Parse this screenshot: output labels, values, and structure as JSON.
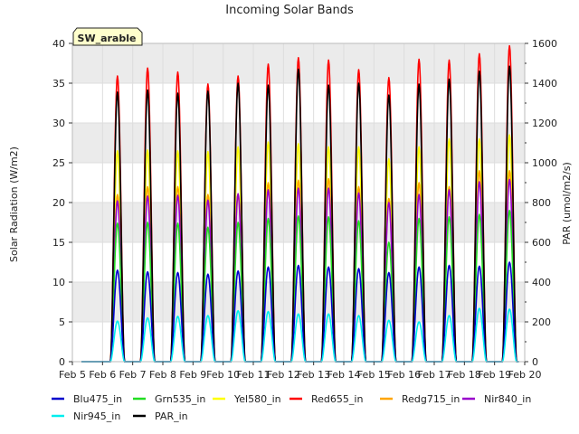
{
  "chart_data": {
    "type": "line",
    "title": "Incoming Solar Bands",
    "annotation": "SW_arable",
    "ylabel": "Solar Radiation (W/m2)",
    "y2label": "PAR (umol/m2/s)",
    "xlabel": "",
    "x_tick_labels": [
      "Feb 5",
      "Feb 6",
      "Feb 7",
      "Feb 8",
      "Feb 9",
      "Feb 10",
      "Feb 11",
      "Feb 12",
      "Feb 13",
      "Feb 14",
      "Feb 15",
      "Feb 16",
      "Feb 17",
      "Feb 18",
      "Feb 19",
      "Feb 20"
    ],
    "xlim": [
      "2024-02-05",
      "2024-02-20"
    ],
    "ylim": [
      0,
      40
    ],
    "y_ticks": [
      0,
      5,
      10,
      15,
      20,
      25,
      30,
      35,
      40
    ],
    "y2lim": [
      0,
      1600
    ],
    "y2_ticks": [
      0,
      200,
      400,
      600,
      800,
      1000,
      1200,
      1400,
      1600
    ],
    "grid": true,
    "legend_position": "bottom",
    "days": [
      "Feb 6",
      "Feb 7",
      "Feb 8",
      "Feb 9",
      "Feb 10",
      "Feb 11",
      "Feb 12",
      "Feb 13",
      "Feb 14",
      "Feb 15",
      "Feb 16",
      "Feb 17",
      "Feb 18",
      "Feb 19"
    ],
    "series": [
      {
        "name": "Blu475_in",
        "color": "#0000cc",
        "axis": "left",
        "daily_peak": [
          11.5,
          11.3,
          11.2,
          11.0,
          11.4,
          11.9,
          12.1,
          11.9,
          11.7,
          11.2,
          11.9,
          12.1,
          12.0,
          12.5
        ]
      },
      {
        "name": "Grn535_in",
        "color": "#22dd22",
        "axis": "left",
        "daily_peak": [
          17.4,
          17.5,
          17.4,
          16.9,
          17.5,
          18.0,
          18.3,
          18.2,
          17.7,
          15.0,
          18.0,
          18.2,
          18.5,
          19.0
        ]
      },
      {
        "name": "Yel580_in",
        "color": "#ffff00",
        "axis": "left",
        "daily_peak": [
          26.5,
          26.6,
          26.5,
          26.4,
          27.0,
          27.6,
          27.4,
          27.0,
          27.0,
          25.5,
          27.0,
          28.0,
          28.0,
          28.5
        ]
      },
      {
        "name": "Red655_in",
        "color": "#ff0000",
        "axis": "left",
        "daily_peak": [
          35.9,
          36.9,
          36.4,
          34.9,
          35.9,
          37.4,
          38.2,
          37.9,
          36.7,
          35.7,
          38.0,
          37.9,
          38.7,
          39.7
        ]
      },
      {
        "name": "Redg715_in",
        "color": "#ffa500",
        "axis": "left",
        "daily_peak": [
          21.0,
          22.0,
          22.0,
          21.0,
          21.0,
          22.5,
          22.8,
          23.0,
          22.0,
          20.5,
          22.5,
          22.0,
          24.0,
          24.0
        ]
      },
      {
        "name": "Nir840_in",
        "color": "#9900cc",
        "axis": "left",
        "daily_peak": [
          20.2,
          20.8,
          20.9,
          20.3,
          21.1,
          21.6,
          21.8,
          21.8,
          21.2,
          20.0,
          21.0,
          21.6,
          22.6,
          22.9
        ]
      },
      {
        "name": "Nir945_in",
        "color": "#00eeee",
        "axis": "left",
        "daily_peak": [
          5.1,
          5.5,
          5.7,
          5.8,
          6.4,
          6.3,
          6.0,
          6.0,
          5.8,
          5.2,
          5.0,
          5.8,
          6.7,
          6.6
        ]
      },
      {
        "name": "PAR_in",
        "color": "#000000",
        "axis": "right",
        "daily_peak": [
          1355,
          1365,
          1350,
          1360,
          1400,
          1390,
          1470,
          1390,
          1400,
          1340,
          1395,
          1420,
          1460,
          1485
        ]
      }
    ]
  }
}
